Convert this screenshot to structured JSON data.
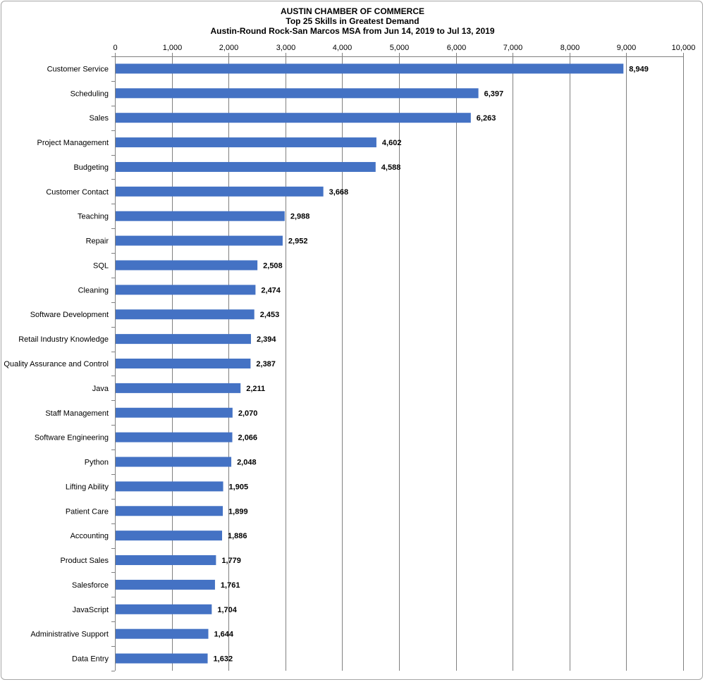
{
  "chart_data": {
    "type": "bar",
    "orientation": "horizontal",
    "title_lines": [
      "AUSTIN CHAMBER  OF COMMERCE",
      "Top 25 Skills in Greatest Demand",
      "Austin-Round  Rock-San Marcos MSA from Jun 14, 2019 to Jul 13, 2019"
    ],
    "xlabel": "",
    "ylabel": "",
    "xlim": [
      0,
      10000
    ],
    "tick_values": [
      0,
      1000,
      2000,
      3000,
      4000,
      5000,
      6000,
      7000,
      8000,
      9000,
      10000
    ],
    "tick_labels": [
      "0",
      "1,000",
      "2,000",
      "3,000",
      "4,000",
      "5,000",
      "6,000",
      "7,000",
      "8,000",
      "9,000",
      "10,000"
    ],
    "axis_position": "top",
    "grid": true,
    "legend": "none",
    "bar_color": "#4472c4",
    "categories": [
      "Customer Service",
      "Scheduling",
      "Sales",
      "Project Management",
      "Budgeting",
      "Customer Contact",
      "Teaching",
      "Repair",
      "SQL",
      "Cleaning",
      "Software Development",
      "Retail Industry Knowledge",
      "Quality Assurance and Control",
      "Java",
      "Staff Management",
      "Software Engineering",
      "Python",
      "Lifting Ability",
      "Patient Care",
      "Accounting",
      "Product Sales",
      "Salesforce",
      "JavaScript",
      "Administrative Support",
      "Data Entry"
    ],
    "values": [
      8949,
      6397,
      6263,
      4602,
      4588,
      3668,
      2988,
      2952,
      2508,
      2474,
      2453,
      2394,
      2387,
      2211,
      2070,
      2066,
      2048,
      1905,
      1899,
      1886,
      1779,
      1761,
      1704,
      1644,
      1632
    ],
    "value_labels": [
      "8,949",
      "6,397",
      "6,263",
      "4,602",
      "4,588",
      "3,668",
      "2,988",
      "2,952",
      "2,508",
      "2,474",
      "2,453",
      "2,394",
      "2,387",
      "2,211",
      "2,070",
      "2,066",
      "2,048",
      "1,905",
      "1,899",
      "1,886",
      "1,779",
      "1,761",
      "1,704",
      "1,644",
      "1,632"
    ]
  }
}
